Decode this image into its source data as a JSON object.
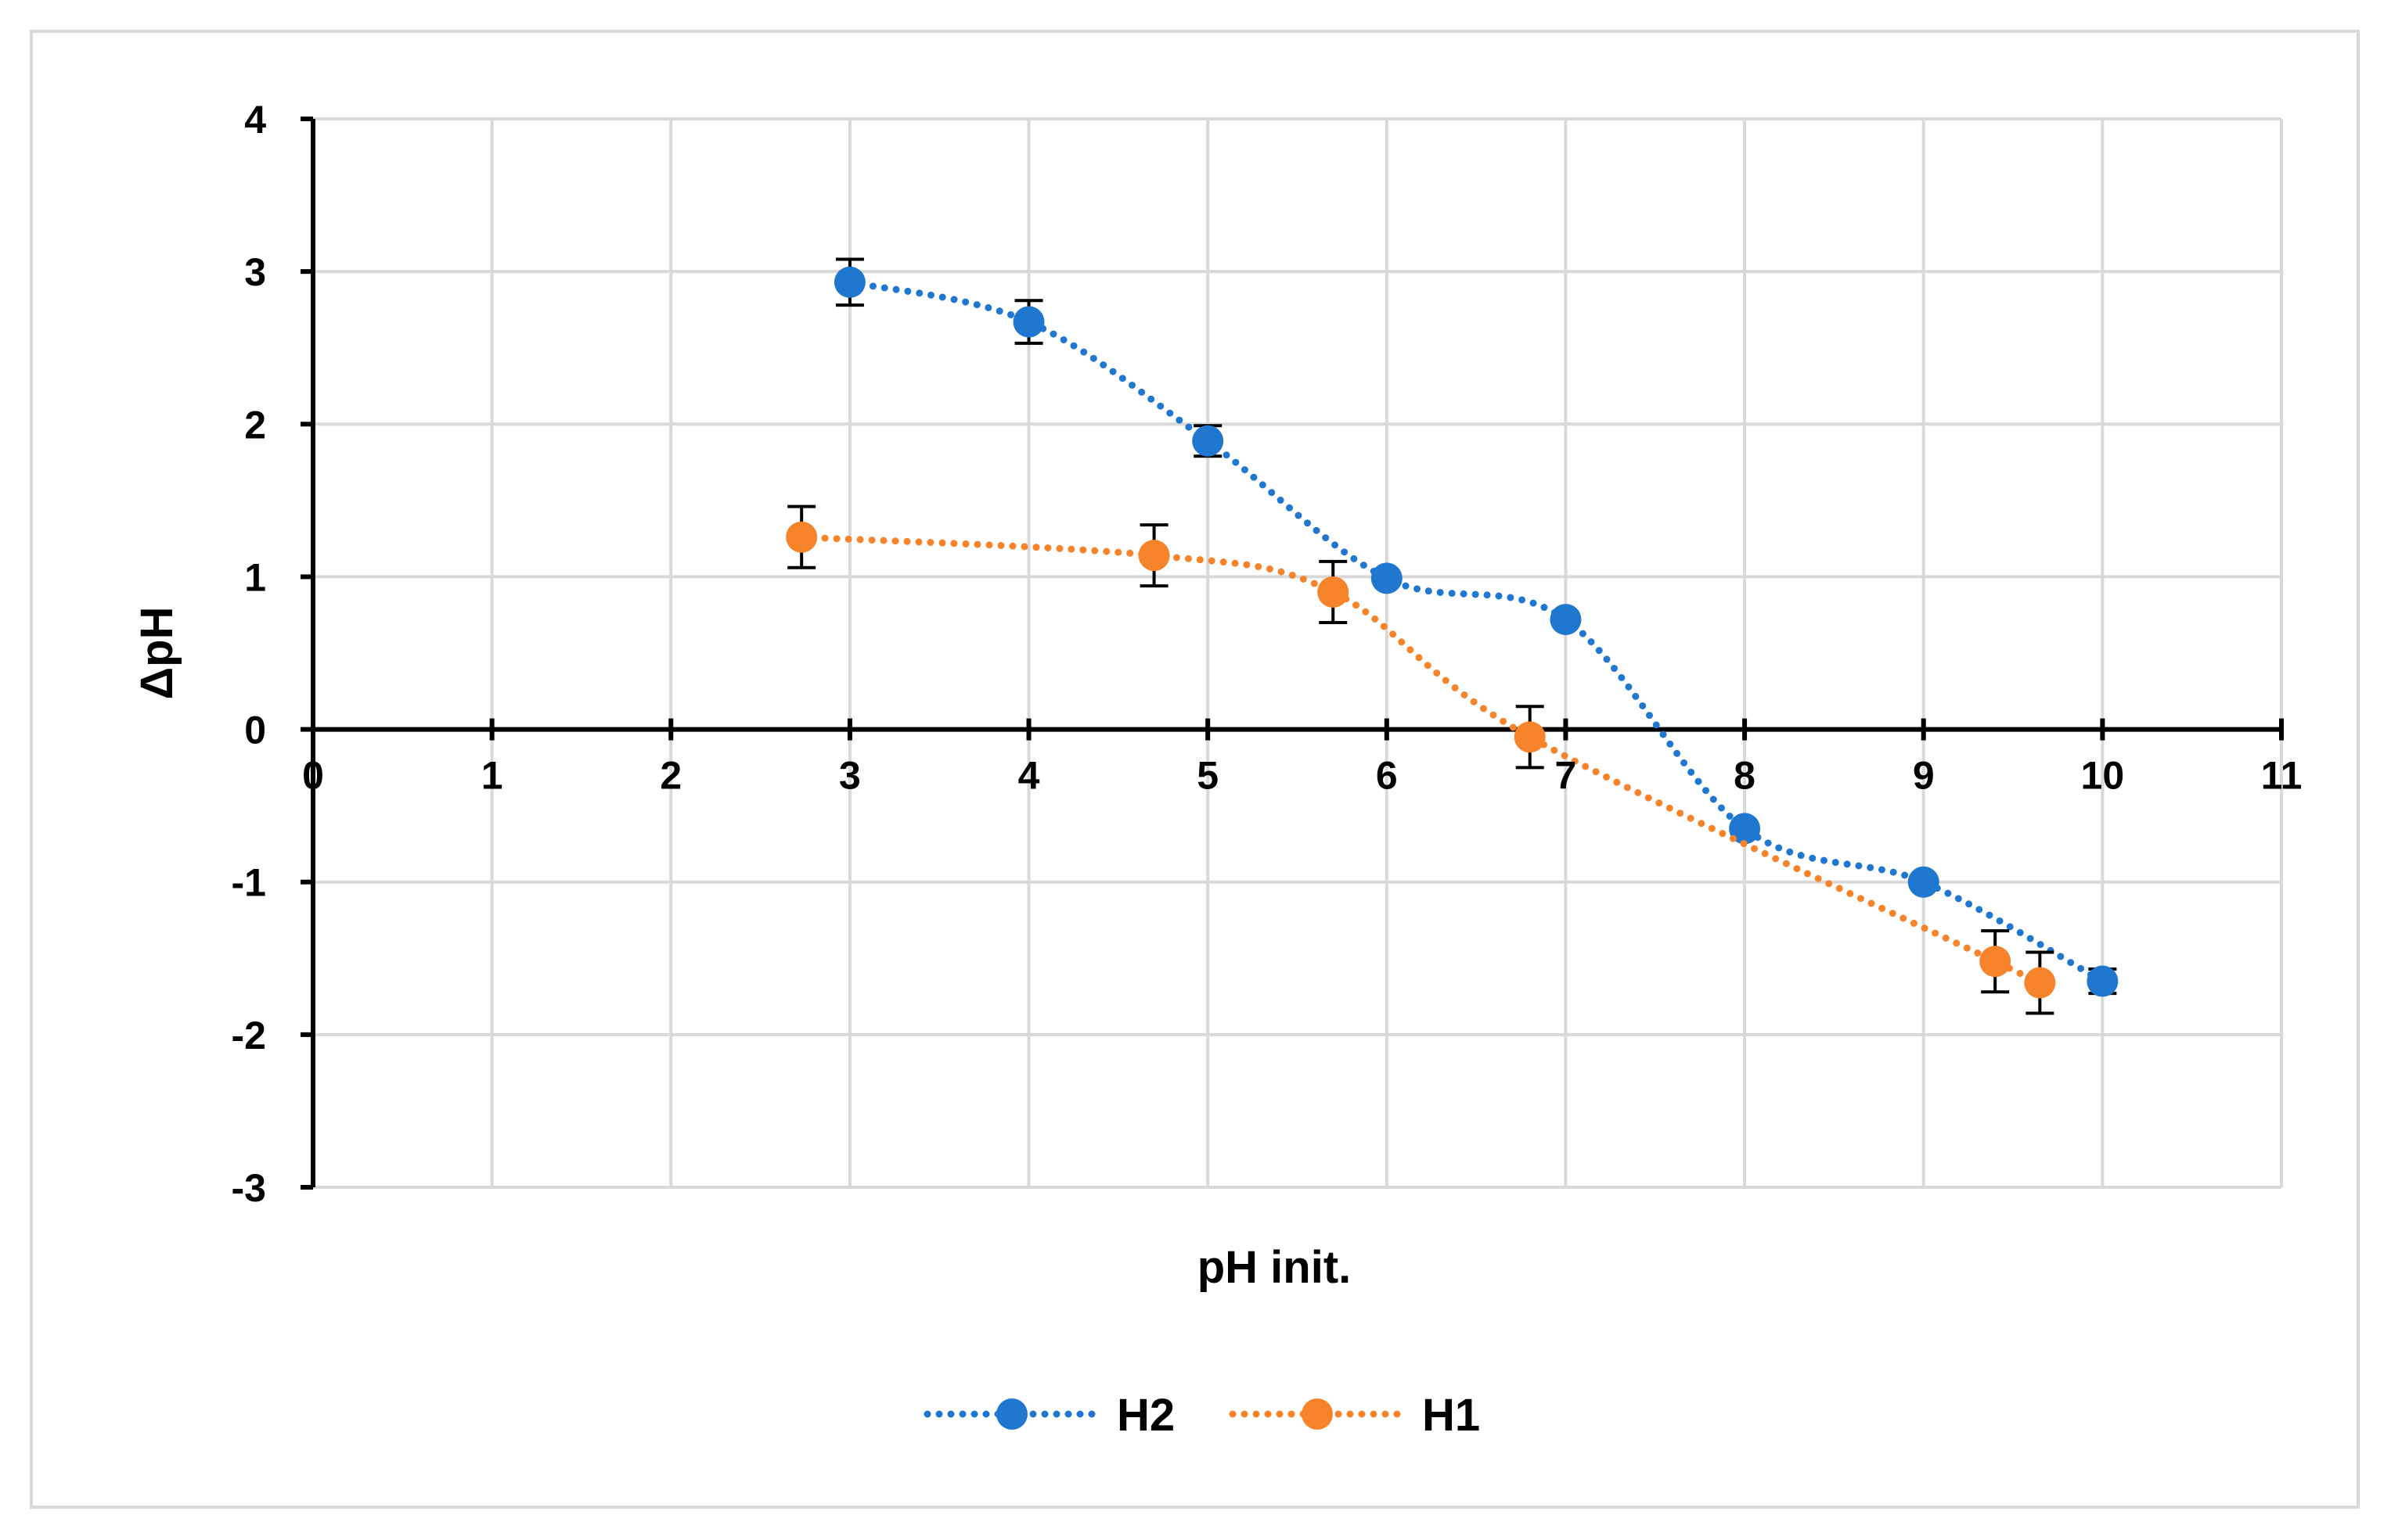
{
  "chart_data": {
    "type": "scatter",
    "title": "",
    "xlabel": "pH init.",
    "ylabel": "ΔpH",
    "xlim": [
      0,
      11
    ],
    "ylim": [
      -3,
      4
    ],
    "x_ticks": [
      0,
      1,
      2,
      3,
      4,
      5,
      6,
      7,
      8,
      9,
      10,
      11
    ],
    "y_ticks": [
      4,
      3,
      2,
      1,
      0,
      -1,
      -2,
      -3
    ],
    "x_tick_labels": [
      "0",
      "1",
      "2",
      "3",
      "4",
      "5",
      "6",
      "7",
      "8",
      "9",
      "10",
      "11"
    ],
    "y_tick_labels": [
      "4",
      "3",
      "2",
      "1",
      "0",
      "-1",
      "-2",
      "-3"
    ],
    "grid": true,
    "legend_position": "bottom",
    "line_style": "dotted smoothed",
    "series": [
      {
        "name": "H2",
        "color": "#1f77d0",
        "x": [
          3,
          4,
          5,
          6,
          7,
          8,
          9,
          10
        ],
        "y": [
          2.93,
          2.67,
          1.89,
          0.99,
          0.72,
          -0.65,
          -1.0,
          -1.65
        ],
        "err": [
          0.15,
          0.14,
          0.1,
          0.0,
          0.0,
          0.0,
          0.0,
          0.08
        ]
      },
      {
        "name": "H1",
        "color": "#f7832a",
        "x": [
          2.73,
          4.7,
          5.7,
          6.8,
          9.4,
          9.65
        ],
        "y": [
          1.26,
          1.14,
          0.9,
          -0.05,
          -1.52,
          -1.66
        ],
        "err": [
          0.2,
          0.2,
          0.2,
          0.2,
          0.2,
          0.2
        ]
      }
    ]
  }
}
